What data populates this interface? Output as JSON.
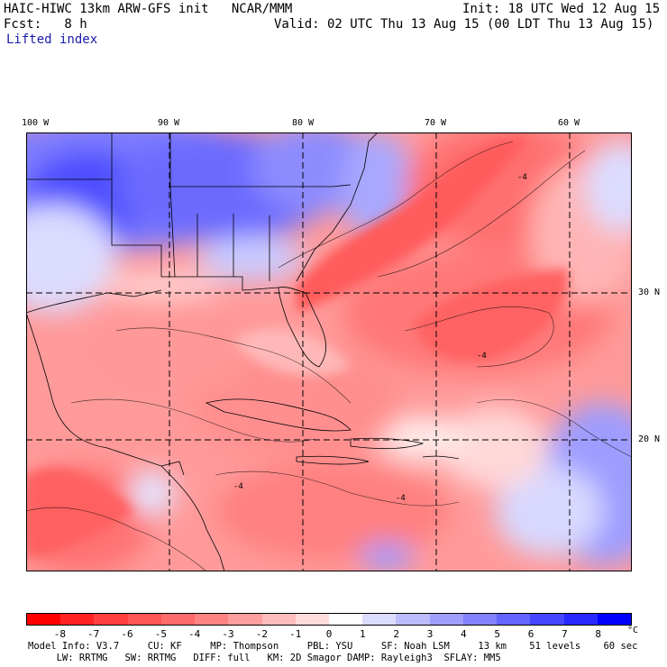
{
  "header": {
    "title": "HAIC-HIWC 13km ARW-GFS init   NCAR/MMM",
    "init": "Init: 18 UTC Wed 12 Aug 15",
    "fcst_label": "Fcst:   8 h",
    "valid": "Valid: 02 UTC Thu 13 Aug 15 (00 LDT Thu 13 Aug 15)",
    "field": "Lifted index"
  },
  "map": {
    "lon_labels": [
      "100 W",
      "90 W",
      "80 W",
      "70 W",
      "60 W"
    ],
    "lat_labels": [
      "30 N",
      "20 N"
    ],
    "contour_labels": [
      "-4",
      "-4",
      "-4",
      "-4"
    ]
  },
  "colorbar": {
    "unit": "°C",
    "ticks": [
      "-8",
      "-7",
      "-6",
      "-5",
      "-4",
      "-3",
      "-2",
      "-1",
      "0",
      "1",
      "2",
      "3",
      "4",
      "5",
      "6",
      "7",
      "8"
    ],
    "colors": [
      "#ff0000",
      "#ff2222",
      "#ff4040",
      "#ff5555",
      "#ff6a6a",
      "#ff8282",
      "#ff9e9e",
      "#ffbcbc",
      "#ffdcdc",
      "#ffffff",
      "#dcdcff",
      "#bcbcff",
      "#9e9eff",
      "#8282ff",
      "#6464ff",
      "#4646ff",
      "#2828ff",
      "#0000ff"
    ]
  },
  "footer": {
    "line1": "Model Info: V3.7     CU: KF     MP: Thompson     PBL: YSU     SF: Noah LSM     13 km    51 levels    60 sec",
    "line2": "     LW: RRTMG   SW: RRTMG   DIFF: full   KM: 2D Smagor DAMP: Rayleigh3  SFLAY: MM5"
  }
}
